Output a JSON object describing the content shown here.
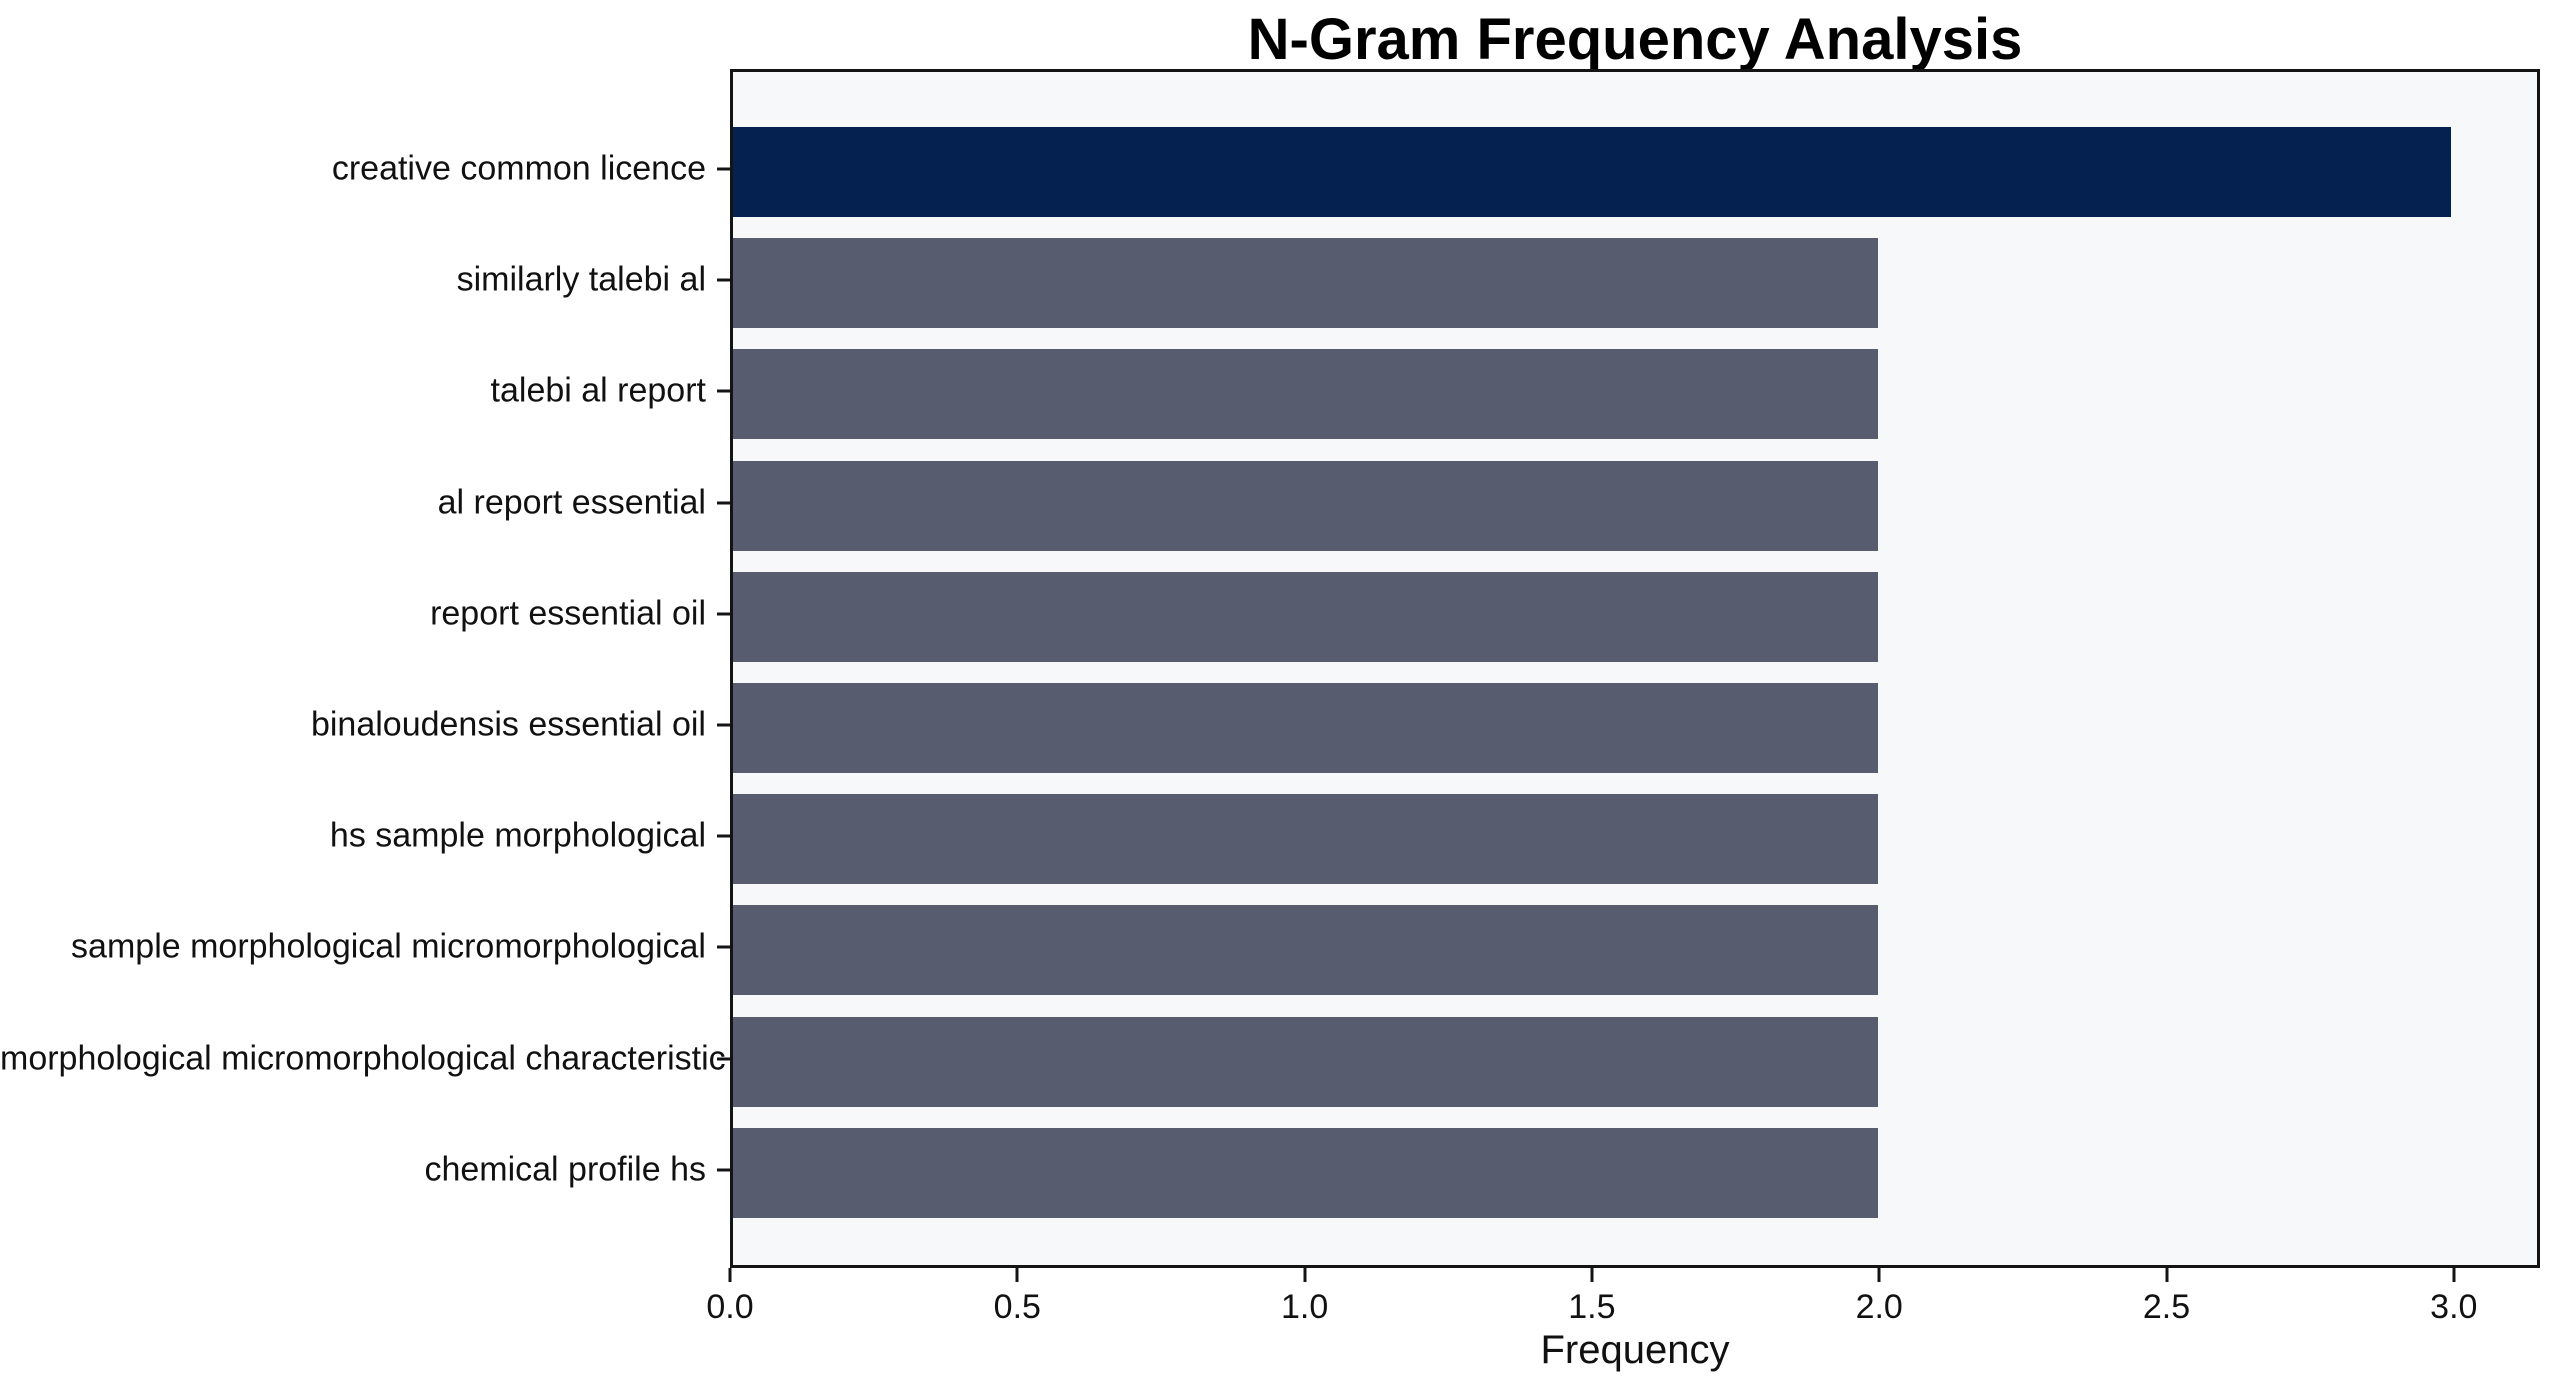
{
  "chart_data": {
    "type": "bar",
    "orientation": "horizontal",
    "title": "N-Gram Frequency Analysis",
    "xlabel": "Frequency",
    "ylabel": "",
    "categories": [
      "creative common licence",
      "similarly talebi al",
      "talebi al report",
      "al report essential",
      "report essential oil",
      "binaloudensis essential oil",
      "hs sample morphological",
      "sample morphological micromorphological",
      "morphological micromorphological characteristic",
      "chemical profile hs"
    ],
    "values": [
      3,
      2,
      2,
      2,
      2,
      2,
      2,
      2,
      2,
      2
    ],
    "bar_colors": [
      "#052150",
      "#575d6e",
      "#575d6e",
      "#575d6e",
      "#575d6e",
      "#575d6e",
      "#575d6e",
      "#575d6e",
      "#575d6e",
      "#575d6e"
    ],
    "xlim": [
      0,
      3.15
    ],
    "xticks": [
      0,
      0.5,
      1,
      1.5,
      2,
      2.5,
      3
    ],
    "xtick_labels": [
      "0.0",
      "0.5",
      "1.0",
      "1.5",
      "2.0",
      "2.5",
      "3.0"
    ],
    "grid": false,
    "legend_position": "none",
    "colors": {
      "highlight": "#052150",
      "default": "#575d6e",
      "plot_background": "#f7f8f9",
      "figure_background": "#ffffff",
      "spine": "#141414",
      "text": "#111111"
    }
  }
}
